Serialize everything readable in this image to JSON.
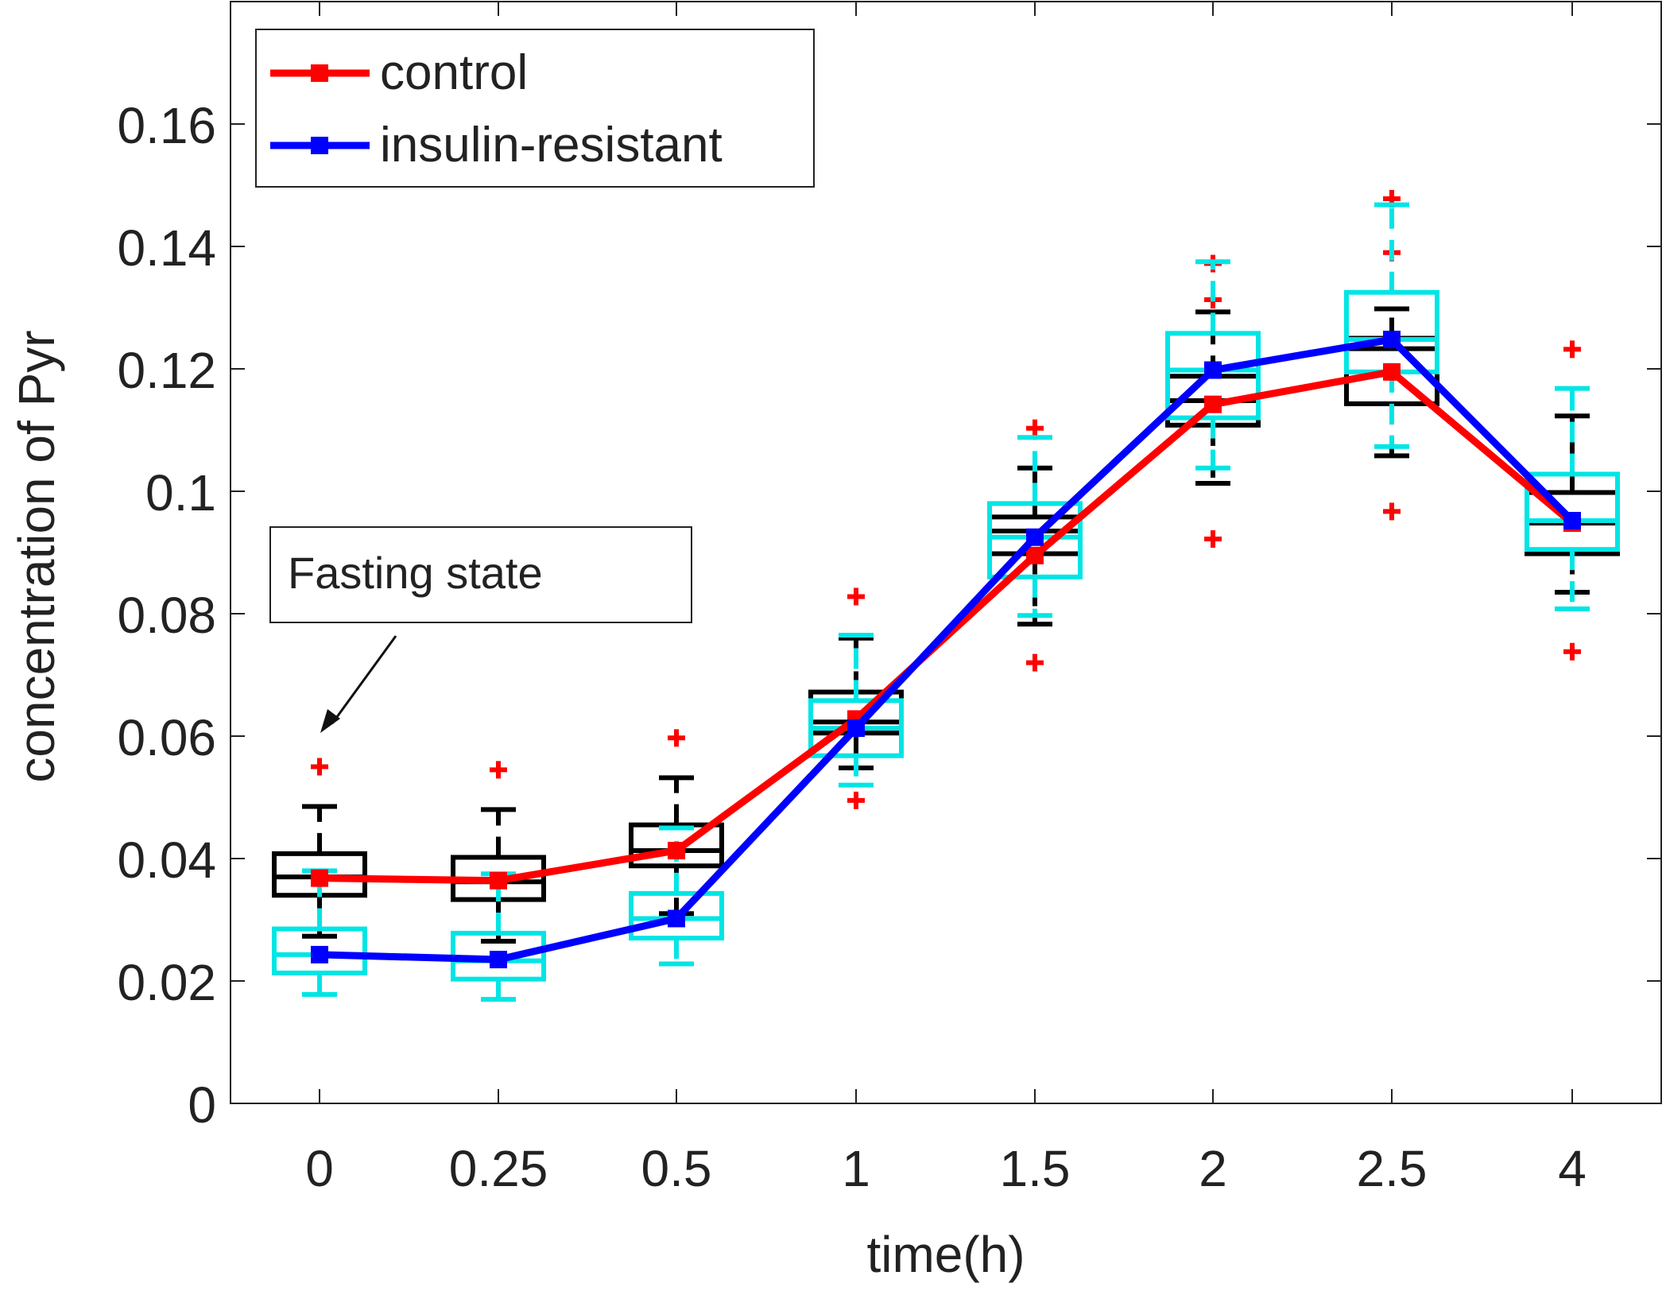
{
  "chart_data": {
    "type": "line",
    "xlabel": "time(h)",
    "ylabel": "concentration of Pyr",
    "categories": [
      "0",
      "0.25",
      "0.5",
      "1",
      "1.5",
      "2",
      "2.5",
      "4"
    ],
    "y_ticks": [
      "0",
      "0.02",
      "0.04",
      "0.06",
      "0.08",
      "0.1",
      "0.12",
      "0.14",
      "0.16"
    ],
    "ylim": [
      0,
      0.18
    ],
    "grid": false,
    "legend_position": "top-left",
    "annotation": "Fasting state",
    "series": [
      {
        "name": "control",
        "color": "#ff0000",
        "marker": "square",
        "values": [
          0.0368,
          0.0364,
          0.0413,
          0.0628,
          0.0895,
          0.1142,
          0.1195,
          0.0948
        ]
      },
      {
        "name": "insulin-resistant",
        "color": "#0000ff",
        "marker": "square",
        "values": [
          0.0243,
          0.0235,
          0.0302,
          0.0613,
          0.0925,
          0.1198,
          0.1248,
          0.0952
        ]
      }
    ],
    "boxplots": [
      {
        "group": "control",
        "color": "#000000",
        "outlier_color": "#ff0000",
        "stats": [
          {
            "min": 0.0273,
            "q1": 0.034,
            "median": 0.037,
            "q3": 0.0408,
            "max": 0.0485,
            "outliers": [
              0.055
            ]
          },
          {
            "min": 0.0265,
            "q1": 0.0333,
            "median": 0.0362,
            "q3": 0.0402,
            "max": 0.048,
            "outliers": [
              0.0545
            ]
          },
          {
            "min": 0.031,
            "q1": 0.0388,
            "median": 0.0413,
            "q3": 0.0455,
            "max": 0.0532,
            "outliers": [
              0.0597
            ]
          },
          {
            "min": 0.0548,
            "q1": 0.0605,
            "median": 0.0623,
            "q3": 0.0672,
            "max": 0.076,
            "outliers": [
              0.0828,
              0.0495
            ]
          },
          {
            "min": 0.0783,
            "q1": 0.0898,
            "median": 0.0935,
            "q3": 0.0958,
            "max": 0.1038,
            "outliers": [
              0.1103,
              0.072
            ]
          },
          {
            "min": 0.1013,
            "q1": 0.1108,
            "median": 0.1148,
            "q3": 0.1188,
            "max": 0.1293,
            "outliers": [
              0.1313,
              0.1372,
              0.0922
            ]
          },
          {
            "min": 0.1058,
            "q1": 0.1143,
            "median": 0.1233,
            "q3": 0.125,
            "max": 0.1298,
            "outliers": [
              0.139,
              0.1478,
              0.0967
            ]
          },
          {
            "min": 0.0835,
            "q1": 0.0898,
            "median": 0.0948,
            "q3": 0.0998,
            "max": 0.1123,
            "outliers": [
              0.1232,
              0.0738
            ]
          }
        ]
      },
      {
        "group": "insulin-resistant",
        "color": "#00e5e5",
        "outlier_color": "#ff0000",
        "stats": [
          {
            "min": 0.0178,
            "q1": 0.0213,
            "median": 0.0243,
            "q3": 0.0285,
            "max": 0.038,
            "outliers": []
          },
          {
            "min": 0.017,
            "q1": 0.0203,
            "median": 0.0233,
            "q3": 0.0278,
            "max": 0.0375,
            "outliers": []
          },
          {
            "min": 0.0228,
            "q1": 0.027,
            "median": 0.0302,
            "q3": 0.0343,
            "max": 0.045,
            "outliers": []
          },
          {
            "min": 0.052,
            "q1": 0.0568,
            "median": 0.0613,
            "q3": 0.0658,
            "max": 0.0765,
            "outliers": []
          },
          {
            "min": 0.0797,
            "q1": 0.086,
            "median": 0.0925,
            "q3": 0.098,
            "max": 0.1088,
            "outliers": []
          },
          {
            "min": 0.1038,
            "q1": 0.112,
            "median": 0.1198,
            "q3": 0.1258,
            "max": 0.1375,
            "outliers": []
          },
          {
            "min": 0.1073,
            "q1": 0.1195,
            "median": 0.1248,
            "q3": 0.1325,
            "max": 0.1468,
            "outliers": []
          },
          {
            "min": 0.0808,
            "q1": 0.0905,
            "median": 0.0952,
            "q3": 0.1028,
            "max": 0.1168,
            "outliers": []
          }
        ]
      }
    ]
  }
}
